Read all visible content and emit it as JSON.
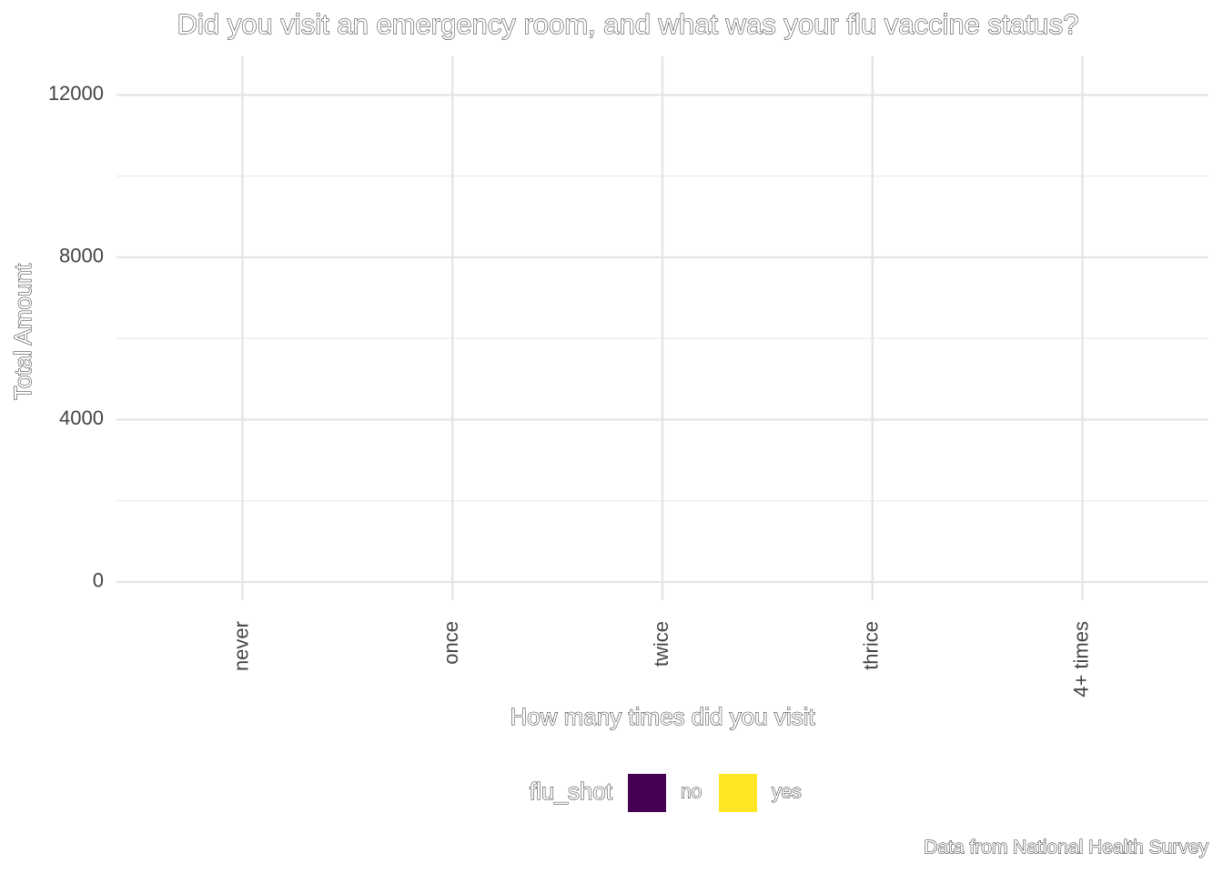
{
  "chart_data": {
    "type": "bar",
    "title": "Did you visit an emergency room, and what was your flu vaccine status?",
    "x_label": "How many times did you visit",
    "y_label": "Total Amount",
    "caption": "Data from National Health Survey",
    "legend_title": "flu_shot",
    "legend_position": "bottom",
    "categories": [
      "never",
      "once",
      "twice",
      "thrice",
      "4+ times"
    ],
    "series": [
      {
        "name": "no",
        "color": "#440154",
        "values": [
          null,
          null,
          null,
          null,
          null
        ]
      },
      {
        "name": "yes",
        "color": "#fde725",
        "values": [
          null,
          null,
          null,
          null,
          null
        ]
      }
    ],
    "ylim": [
      -450,
      12950
    ],
    "yticks": [
      0,
      4000,
      8000,
      12000
    ],
    "minor_yticks": [
      2000,
      6000,
      10000
    ],
    "grid": true
  }
}
